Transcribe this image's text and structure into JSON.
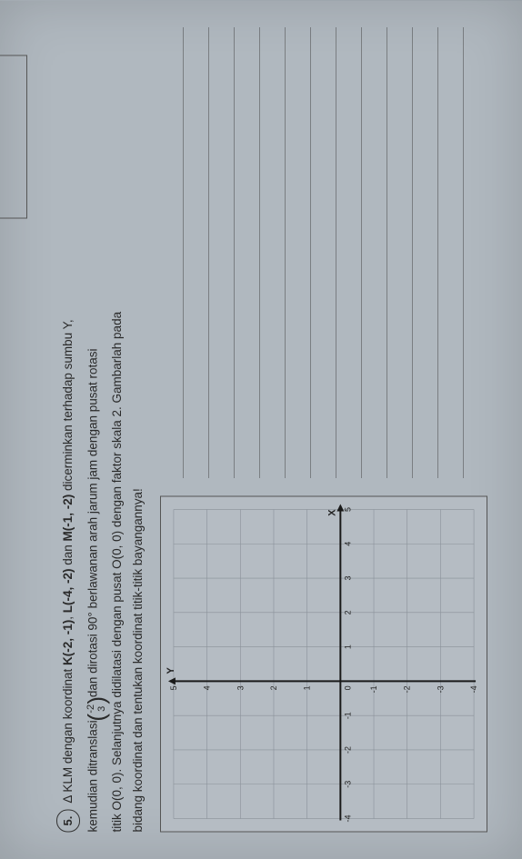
{
  "question": {
    "number": "5.",
    "line1_prefix": "Δ KLM dengan koordinat ",
    "K": "K(-2, -1)",
    "L": "L(-4, -2)",
    "M": "M(-1, -2)",
    "line1_mid1": ", ",
    "line1_mid2": " dan ",
    "line1_suffix": " dicerminkan terhadap sumbu Y,",
    "line2_a": "kemudian ditranslasi ",
    "vec_top": "-2",
    "vec_bot": "3",
    "line2_b": "dan dirotasi 90° berlawanan arah jarum jam dengan pusat rotasi",
    "line3": "titik O(0, 0). Selanjutnya didilatasi dengan pusat O(0, 0) dengan faktor skala 2. Gambarlah pada",
    "line4": "bidang koordinat dan tentukan koordinat titik-titik bayangannya!"
  },
  "grid": {
    "xmin": -4,
    "xmax": 5,
    "ymin": -4,
    "ymax": 5,
    "x_ticks": [
      -4,
      -3,
      -2,
      -1,
      1,
      2,
      3,
      4,
      5
    ],
    "y_ticks": [
      -4,
      -3,
      -2,
      -1,
      1,
      2,
      3,
      4,
      5
    ],
    "y_label": "Y",
    "x_label": "X",
    "origin_label": "0",
    "grid_color": "#8a9199",
    "axis_color": "#1a1a1a"
  },
  "answer_lines_count": 12
}
